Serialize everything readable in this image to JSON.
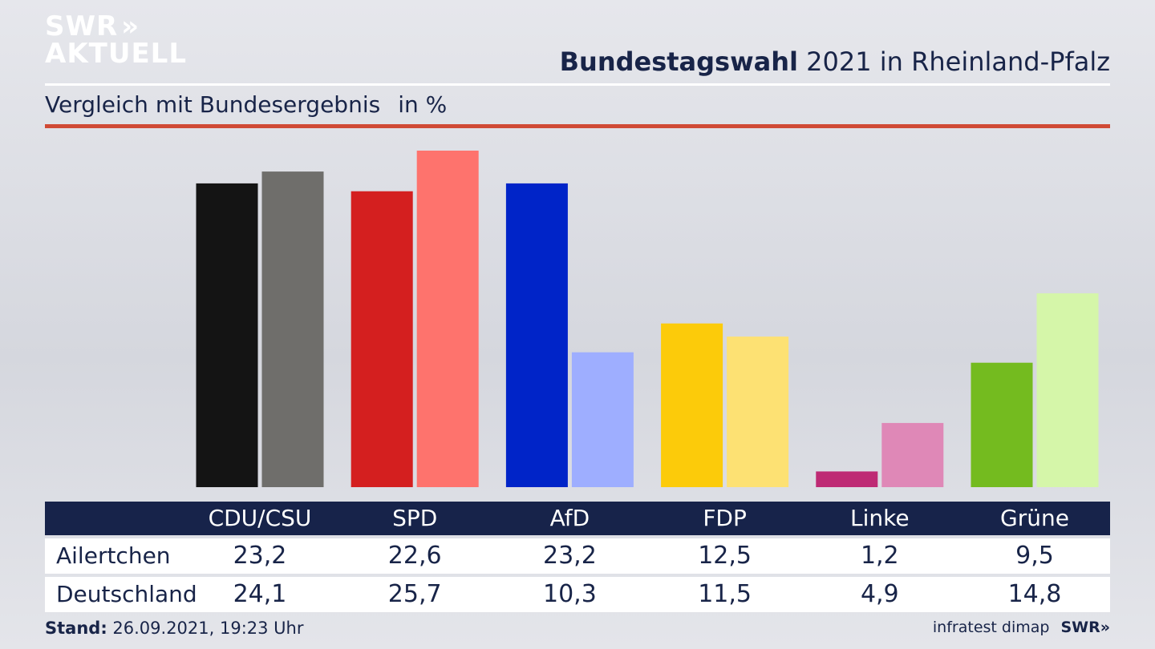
{
  "logo": {
    "line1": "SWR",
    "arrows": "»",
    "line2": "AKTUELL"
  },
  "header": {
    "title_bold": "Bundestagswahl",
    "title_rest": " 2021 in Rheinland-Pfalz",
    "subtitle": "Vergleich mit Bundesergebnis",
    "unit": "in %"
  },
  "footer": {
    "stand_label": "Stand:",
    "stand_value": " 26.09.2021, 19:23 Uhr",
    "source": "infratest dimap",
    "brand": "SWR»"
  },
  "chart_data": {
    "type": "bar",
    "categories": [
      "CDU/CSU",
      "SPD",
      "AfD",
      "FDP",
      "Linke",
      "Grüne"
    ],
    "series": [
      {
        "name": "Ailertchen",
        "values": [
          23.2,
          22.6,
          23.2,
          12.5,
          1.2,
          9.5
        ],
        "colors": [
          "#141414",
          "#d41f1f",
          "#0024c8",
          "#fccb0a",
          "#be2a74",
          "#74bb1f"
        ]
      },
      {
        "name": "Deutschland",
        "values": [
          24.1,
          25.7,
          10.3,
          11.5,
          4.9,
          14.8
        ],
        "colors": [
          "#6f6e6b",
          "#fe736d",
          "#9eaeff",
          "#fde173",
          "#df88b7",
          "#d5f6a9"
        ]
      }
    ],
    "display_values": [
      [
        "23,2",
        "22,6",
        "23,2",
        "12,5",
        "1,2",
        "9,5"
      ],
      [
        "24,1",
        "25,7",
        "10,3",
        "11,5",
        "4,9",
        "14,8"
      ]
    ],
    "ylim": [
      0,
      25.7
    ],
    "grid": false,
    "legend": "table-below"
  }
}
